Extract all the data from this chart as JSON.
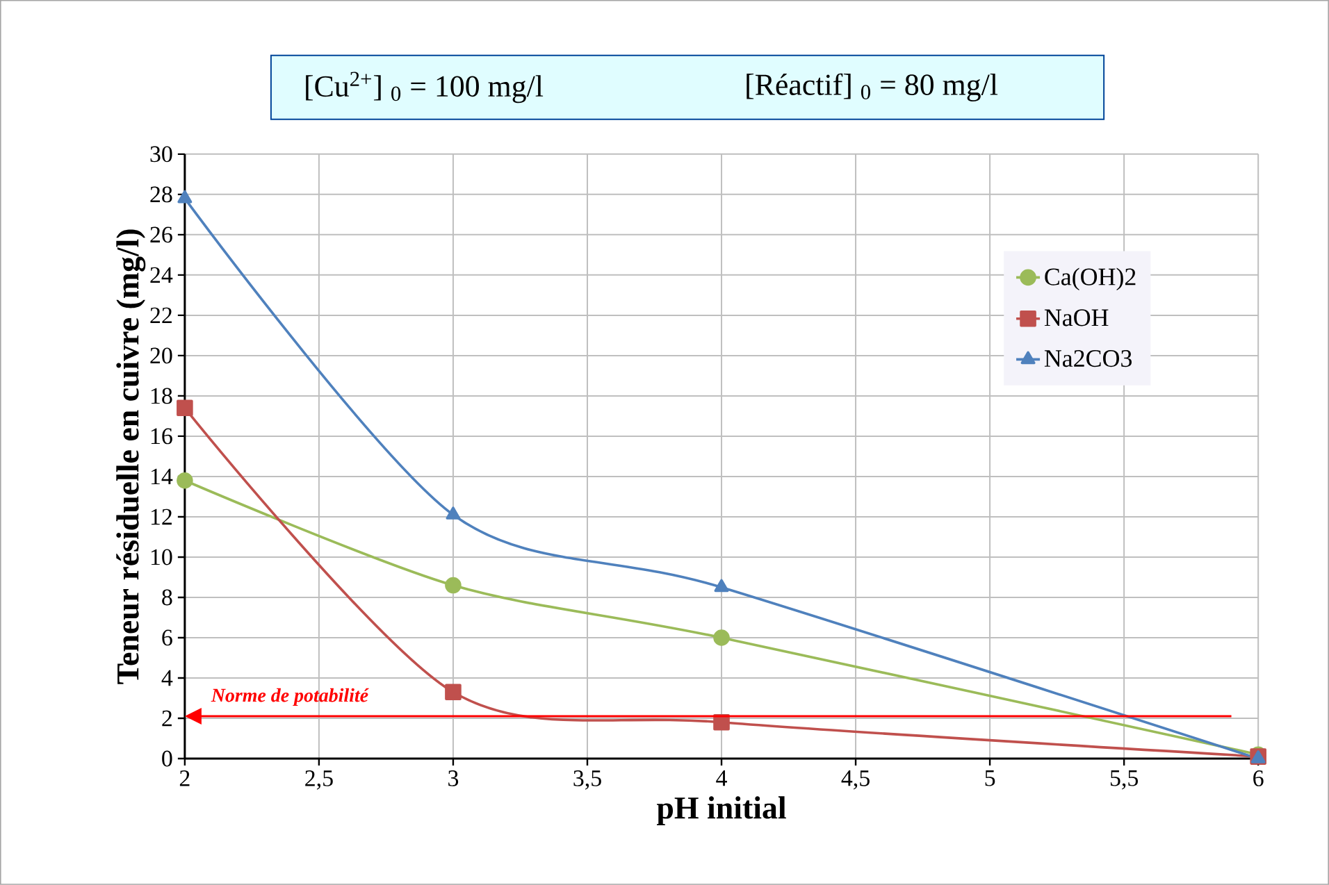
{
  "chart_data": {
    "type": "line",
    "title": "[Cu$^{2+}$] $_{0}$ = 100 mg/l",
    "subtitle": "[Réactif] $_{0}$ = 80 mg/l",
    "xlabel": "pH initial",
    "ylabel": "Teneur résiduelle en cuivre (mg/l)",
    "x": [
      2,
      3,
      4,
      6
    ],
    "series": [
      {
        "name": "Ca(OH)2",
        "color": "#9bbb59",
        "marker": "circle",
        "values": [
          13.8,
          8.6,
          6.0,
          0.2
        ]
      },
      {
        "name": "NaOH",
        "color": "#c0504d",
        "marker": "square",
        "values": [
          17.4,
          3.3,
          1.8,
          0.1
        ]
      },
      {
        "name": "Na2CO3",
        "color": "#4f81bd",
        "marker": "triangle",
        "values": [
          27.8,
          12.1,
          8.5,
          0.0
        ]
      }
    ],
    "xlim": [
      2,
      6
    ],
    "ylim": [
      0,
      30
    ],
    "xticks": [
      2,
      {
        "value": 2.5,
        "label": "2,5"
      },
      3,
      {
        "value": 3.5,
        "label": "3,5"
      },
      4,
      {
        "value": 4.5,
        "label": "4,5"
      },
      5,
      {
        "value": 5.5,
        "label": "5,5"
      },
      6
    ],
    "yticks": [
      0,
      2,
      4,
      6,
      8,
      10,
      12,
      14,
      16,
      18,
      20,
      22,
      24,
      26,
      28,
      30
    ],
    "ref_lines": [
      {
        "axis": "y",
        "value": 2.1,
        "label": "Norme de potabilité",
        "color": "#ff0000"
      }
    ],
    "grid": true,
    "legend": "top right",
    "line_style": "solid"
  }
}
